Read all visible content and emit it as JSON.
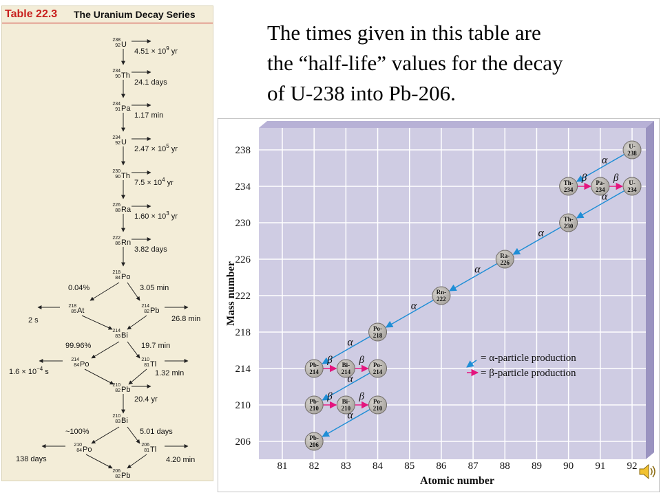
{
  "table": {
    "number": "Table 22.3",
    "title": "The Uranium Decay Series",
    "main_chain": [
      {
        "sym": "U",
        "mass": "238",
        "z": "92",
        "t_base": "4.51 × 10",
        "t_exp": "9",
        "t_unit": " yr"
      },
      {
        "sym": "Th",
        "mass": "234",
        "z": "90",
        "t_base": "24.1 days",
        "t_exp": "",
        "t_unit": ""
      },
      {
        "sym": "Pa",
        "mass": "234",
        "z": "91",
        "t_base": "1.17 min",
        "t_exp": "",
        "t_unit": ""
      },
      {
        "sym": "U",
        "mass": "234",
        "z": "92",
        "t_base": "2.47 × 10",
        "t_exp": "5",
        "t_unit": " yr"
      },
      {
        "sym": "Th",
        "mass": "230",
        "z": "90",
        "t_base": "7.5 × 10",
        "t_exp": "4",
        "t_unit": " yr"
      },
      {
        "sym": "Ra",
        "mass": "226",
        "z": "88",
        "t_base": "1.60 × 10",
        "t_exp": "3",
        "t_unit": " yr"
      },
      {
        "sym": "Rn",
        "mass": "222",
        "z": "86",
        "t_base": "3.82 days",
        "t_exp": "",
        "t_unit": ""
      },
      {
        "sym": "Po",
        "mass": "218",
        "z": "84",
        "t_base": "",
        "t_exp": "",
        "t_unit": ""
      }
    ],
    "branches": [
      {
        "parent": {
          "sym": "Po",
          "mass": "218",
          "z": "84"
        },
        "left_pct": "0.04%",
        "right_time": "3.05 min",
        "left_node": {
          "sym": "At",
          "mass": "218",
          "z": "85"
        },
        "left_time": "2 s",
        "right_node": {
          "sym": "Pb",
          "mass": "214",
          "z": "82"
        },
        "right_side_time": "26.8 min",
        "merge": {
          "sym": "Bi",
          "mass": "214",
          "z": "83"
        }
      },
      {
        "parent": {
          "sym": "Bi",
          "mass": "214",
          "z": "83"
        },
        "left_pct": "99.96%",
        "right_time": "19.7 min",
        "left_node": {
          "sym": "Po",
          "mass": "214",
          "z": "84"
        },
        "left_time_base": "1.6 × 10",
        "left_time_exp": "−4",
        "left_time_unit": " s",
        "right_node": {
          "sym": "Tl",
          "mass": "210",
          "z": "81"
        },
        "right_side_time": "1.32 min",
        "merge": {
          "sym": "Pb",
          "mass": "210",
          "z": "82"
        }
      }
    ],
    "pb210_time": "20.4 yr",
    "final_branch": {
      "parent": {
        "sym": "Bi",
        "mass": "210",
        "z": "83"
      },
      "left_pct": "~100%",
      "right_time": "5.01 days",
      "left_node": {
        "sym": "Po",
        "mass": "210",
        "z": "84"
      },
      "left_time": "138 days",
      "right_node": {
        "sym": "Tl",
        "mass": "206",
        "z": "81"
      },
      "right_side_time": "4.20 min",
      "end": {
        "sym": "Pb",
        "mass": "206",
        "z": "82"
      }
    }
  },
  "caption": [
    "The times given in this table are",
    "the “half-life” values for the decay",
    "of U-238 into Pb-206."
  ],
  "chart": {
    "ylabel": "Mass number",
    "xlabel": "Atomic number",
    "x_ticks": [
      "81",
      "82",
      "83",
      "84",
      "85",
      "86",
      "87",
      "88",
      "89",
      "90",
      "91",
      "92"
    ],
    "y_ticks": [
      "238",
      "234",
      "230",
      "226",
      "222",
      "218",
      "214",
      "210",
      "206"
    ],
    "nuclides": [
      {
        "sym": "U",
        "mass": 238,
        "z": 92
      },
      {
        "sym": "Th",
        "mass": 234,
        "z": 90
      },
      {
        "sym": "Pa",
        "mass": 234,
        "z": 91
      },
      {
        "sym": "U",
        "mass": 234,
        "z": 92
      },
      {
        "sym": "Th",
        "mass": 230,
        "z": 90
      },
      {
        "sym": "Ra",
        "mass": 226,
        "z": 88
      },
      {
        "sym": "Rn",
        "mass": 222,
        "z": 86
      },
      {
        "sym": "Po",
        "mass": 218,
        "z": 84
      },
      {
        "sym": "Pb",
        "mass": 214,
        "z": 82
      },
      {
        "sym": "Bi",
        "mass": 214,
        "z": 83
      },
      {
        "sym": "Po",
        "mass": 214,
        "z": 84
      },
      {
        "sym": "Pb",
        "mass": 210,
        "z": 82
      },
      {
        "sym": "Bi",
        "mass": 210,
        "z": 83
      },
      {
        "sym": "Po",
        "mass": 210,
        "z": 84
      },
      {
        "sym": "Pb",
        "mass": 206,
        "z": 82
      }
    ],
    "alpha_arrows": [
      {
        "from": [
          92,
          238
        ],
        "to": [
          90,
          234
        ]
      },
      {
        "from": [
          92,
          234
        ],
        "to": [
          90,
          230
        ]
      },
      {
        "from": [
          90,
          230
        ],
        "to": [
          88,
          226
        ]
      },
      {
        "from": [
          88,
          226
        ],
        "to": [
          86,
          222
        ]
      },
      {
        "from": [
          86,
          222
        ],
        "to": [
          84,
          218
        ]
      },
      {
        "from": [
          84,
          218
        ],
        "to": [
          82,
          214
        ]
      },
      {
        "from": [
          84,
          214
        ],
        "to": [
          82,
          210
        ]
      },
      {
        "from": [
          84,
          210
        ],
        "to": [
          82,
          206
        ]
      }
    ],
    "beta_arrows": [
      {
        "from": [
          90,
          234
        ],
        "to": [
          91,
          234
        ]
      },
      {
        "from": [
          91,
          234
        ],
        "to": [
          92,
          234
        ]
      },
      {
        "from": [
          82,
          214
        ],
        "to": [
          83,
          214
        ]
      },
      {
        "from": [
          83,
          214
        ],
        "to": [
          84,
          214
        ]
      },
      {
        "from": [
          82,
          210
        ],
        "to": [
          83,
          210
        ]
      },
      {
        "from": [
          83,
          210
        ],
        "to": [
          84,
          210
        ]
      }
    ],
    "alpha_symbol": "α",
    "beta_symbol": "β",
    "legend": {
      "alpha_label": "= α-particle production",
      "beta_label": "= β-particle production"
    },
    "colors": {
      "plot_bg": "#cfcce3",
      "frame_side": "#9a93c0",
      "grid": "#ffffff",
      "node_fill": "#a9a5a0",
      "alpha_arrow": "#1f8ed6",
      "beta_arrow": "#e4157e"
    }
  }
}
